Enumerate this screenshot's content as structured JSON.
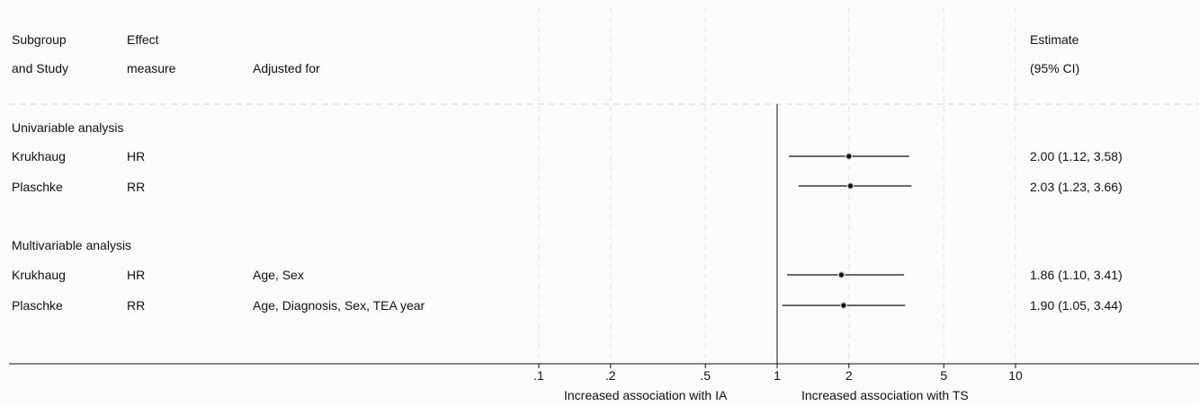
{
  "header": {
    "col1_line1": "Subgroup",
    "col1_line2": "and Study",
    "col2_line1": "Effect",
    "col2_line2": "measure",
    "col3_line2": "Adjusted for",
    "col4_line1": "Estimate",
    "col4_line2": "(95% CI)"
  },
  "groups": [
    {
      "label": "Univariable analysis"
    },
    {
      "label": "Multivariable analysis"
    }
  ],
  "rows": [
    {
      "study": "Krukhaug",
      "measure": "HR",
      "adjusted": "",
      "estimate_text": "2.00 (1.12, 3.58)"
    },
    {
      "study": "Plaschke",
      "measure": "RR",
      "adjusted": "",
      "estimate_text": "2.03 (1.23, 3.66)"
    },
    {
      "study": "Krukhaug",
      "measure": "HR",
      "adjusted": "Age, Sex",
      "estimate_text": "1.86 (1.10, 3.41)"
    },
    {
      "study": "Plaschke",
      "measure": "RR",
      "adjusted": "Age, Diagnosis, Sex, TEA year",
      "estimate_text": "1.90 (1.05, 3.44)"
    }
  ],
  "chart_data": {
    "type": "forest",
    "scale": "log",
    "null_value": 1,
    "xlim": [
      0.1,
      10
    ],
    "ticks": [
      0.1,
      0.2,
      0.5,
      1,
      2,
      5,
      10
    ],
    "tick_labels": [
      ".1",
      ".2",
      ".5",
      "1",
      "2",
      "5",
      "10"
    ],
    "grid": true,
    "xlabel_left": "Increased association with IA",
    "xlabel_right": "Increased association with TS",
    "points": [
      {
        "group": "Univariable analysis",
        "study": "Krukhaug",
        "estimate": 2.0,
        "lower": 1.12,
        "upper": 3.58
      },
      {
        "group": "Univariable analysis",
        "study": "Plaschke",
        "estimate": 2.03,
        "lower": 1.23,
        "upper": 3.66
      },
      {
        "group": "Multivariable analysis",
        "study": "Krukhaug",
        "estimate": 1.86,
        "lower": 1.1,
        "upper": 3.41
      },
      {
        "group": "Multivariable analysis",
        "study": "Plaschke",
        "estimate": 1.9,
        "lower": 1.05,
        "upper": 3.44
      }
    ],
    "colors": {
      "marker": "#111111",
      "line": "#111111",
      "grid": "#e3e3e3"
    }
  }
}
